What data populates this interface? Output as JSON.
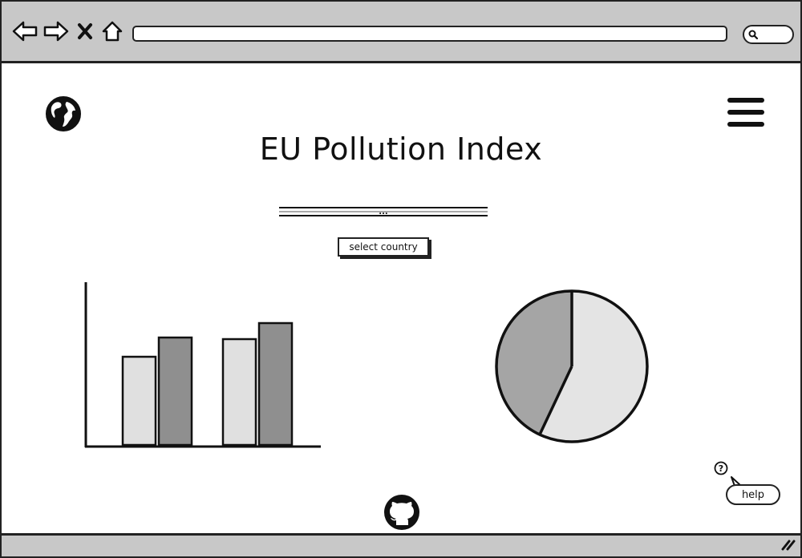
{
  "browser": {
    "address_value": "",
    "icons": {
      "back": "back-arrow-icon",
      "forward": "forward-arrow-icon",
      "stop": "close-icon",
      "home": "home-icon",
      "search": "search-icon",
      "grip": "resize-grip-icon"
    }
  },
  "header": {
    "logo_icon": "globe-icon",
    "menu_icon": "hamburger-menu-icon",
    "title": "EU Pollution Index"
  },
  "controls": {
    "slider_handle": "...",
    "select_country_label": "select country"
  },
  "chart_data": [
    {
      "type": "bar",
      "categories": [
        "",
        ""
      ],
      "series": [
        {
          "values": [
            55,
            66
          ],
          "color": "#e0e0e0"
        },
        {
          "values": [
            67,
            76
          ],
          "color": "#8f8f8f"
        }
      ],
      "ylim": [
        0,
        100
      ],
      "title": "",
      "xlabel": "",
      "ylabel": "",
      "grid": false
    },
    {
      "type": "pie",
      "slices": [
        {
          "value": 57,
          "color": "#e4e4e4"
        },
        {
          "value": 43,
          "color": "#a5a5a5"
        }
      ],
      "title": ""
    }
  ],
  "footer": {
    "github_icon": "github-icon",
    "help_icon": "help-question-icon",
    "help_label": "help"
  }
}
